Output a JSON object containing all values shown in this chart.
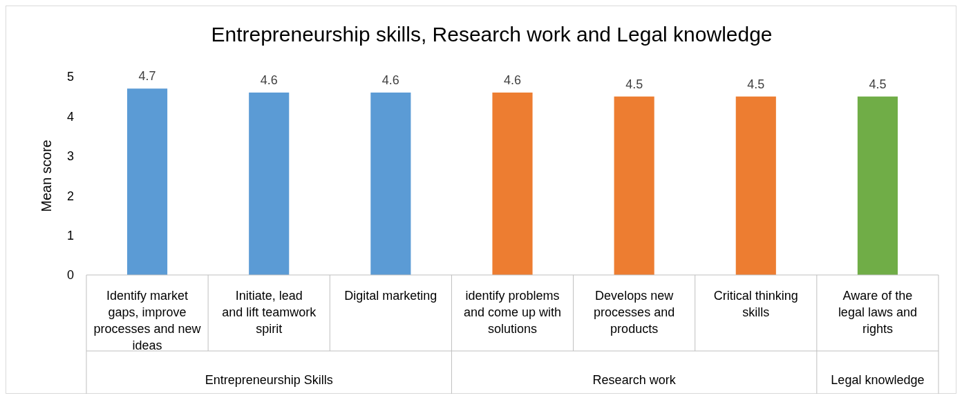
{
  "chart_data": {
    "type": "bar",
    "title": "Entrepreneurship skills, Research work and Legal knowledge",
    "ylabel": "Mean score",
    "categories": [
      "Identify market gaps, improve processes and new ideas",
      "Initiate, lead and lift teamwork spirit",
      "Digital marketing",
      "identify problems and come up with solutions",
      "Develops new processes and products",
      "Critical thinking skills",
      "Aware of the legal laws and rights"
    ],
    "values": [
      4.7,
      4.6,
      4.6,
      4.6,
      4.5,
      4.5,
      4.5
    ],
    "colors": [
      "#5b9bd5",
      "#5b9bd5",
      "#5b9bd5",
      "#ed7d31",
      "#ed7d31",
      "#ed7d31",
      "#70ad47"
    ],
    "annotations": [
      "Entrepreneurship Skills",
      "Research work",
      "Legal knowledge"
    ],
    "ylim": [
      0,
      5
    ],
    "yticks": [
      0,
      1,
      2,
      3,
      4,
      5
    ],
    "data_labels": true
  }
}
